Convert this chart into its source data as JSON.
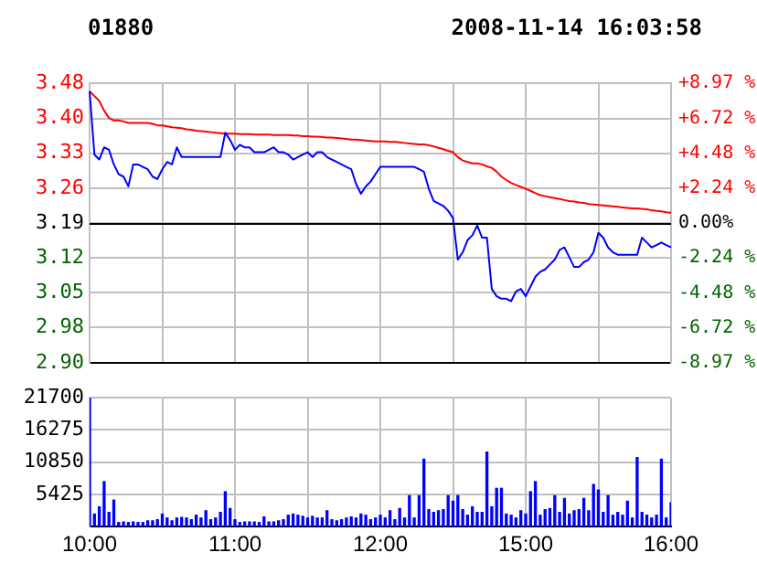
{
  "chart_data": [
    {
      "type": "line",
      "title": "01880",
      "subtitle": "2008-11-14 16:03:58",
      "categories": [
        null,
        null,
        null,
        null,
        null,
        null,
        null,
        null,
        null,
        null,
        null,
        null,
        null,
        null,
        null,
        null,
        null,
        null,
        null,
        null,
        null,
        null,
        null,
        null,
        null,
        null,
        null,
        null,
        null,
        null,
        null,
        null,
        null,
        null,
        null,
        null,
        null,
        null,
        null,
        null,
        null,
        null,
        null,
        null,
        null,
        null,
        null,
        null,
        null,
        null,
        null,
        null,
        null,
        null,
        null,
        null,
        null,
        null,
        null,
        null,
        null,
        null,
        null,
        null,
        null,
        null,
        null,
        null,
        null,
        null,
        null,
        null,
        null,
        null,
        null,
        null,
        null,
        null,
        null,
        null,
        null,
        null,
        null,
        null,
        null,
        null,
        null,
        null,
        null,
        null,
        null,
        null,
        null,
        null,
        null,
        null,
        null,
        null,
        null,
        null,
        null,
        null,
        null,
        null,
        null,
        null,
        null,
        null,
        null,
        null,
        null,
        null,
        null,
        null,
        null,
        null,
        null,
        null,
        null,
        null,
        null
      ],
      "series": [
        {
          "color": "#0000ff",
          "values": [
            3.46,
            3.33,
            3.32,
            3.345,
            3.34,
            3.31,
            3.29,
            3.285,
            3.265,
            3.31,
            3.31,
            3.305,
            3.3,
            3.285,
            3.28,
            3.3,
            3.315,
            3.31,
            3.345,
            3.325,
            3.325,
            3.325,
            3.325,
            3.325,
            3.325,
            3.325,
            3.325,
            3.325,
            3.375,
            3.36,
            3.34,
            3.35,
            3.345,
            3.345,
            3.335,
            3.335,
            3.335,
            3.34,
            3.345,
            3.335,
            3.335,
            3.33,
            3.32,
            3.325,
            3.33,
            3.335,
            3.325,
            3.335,
            3.335,
            3.325,
            3.32,
            3.315,
            3.31,
            3.305,
            3.3,
            3.27,
            3.25,
            3.265,
            3.275,
            3.29,
            3.305,
            3.305,
            3.305,
            3.305,
            3.305,
            3.305,
            3.305,
            3.305,
            3.3,
            3.295,
            3.26,
            3.235,
            3.23,
            3.225,
            3.215,
            3.2,
            3.115,
            3.13,
            3.155,
            3.165,
            3.185,
            3.16,
            3.16,
            3.055,
            3.04,
            3.035,
            3.035,
            3.03,
            3.05,
            3.055,
            3.04,
            3.06,
            3.08,
            3.09,
            3.095,
            3.105,
            3.115,
            3.135,
            3.14,
            3.12,
            3.1,
            3.1,
            3.11,
            3.115,
            3.13,
            3.17,
            3.16,
            3.14,
            3.13,
            3.125,
            3.125,
            3.125,
            3.125,
            3.125,
            3.16,
            3.15,
            3.14,
            3.145,
            3.15,
            3.145,
            3.14
          ]
        },
        {
          "color": "#ff0000",
          "values": [
            3.46,
            3.45,
            3.44,
            3.42,
            3.405,
            3.4,
            3.4,
            3.398,
            3.395,
            3.395,
            3.395,
            3.395,
            3.395,
            3.393,
            3.39,
            3.39,
            3.388,
            3.386,
            3.385,
            3.384,
            3.382,
            3.381,
            3.379,
            3.378,
            3.377,
            3.376,
            3.375,
            3.374,
            3.373,
            3.373,
            3.373,
            3.372,
            3.372,
            3.372,
            3.371,
            3.371,
            3.371,
            3.371,
            3.37,
            3.37,
            3.37,
            3.37,
            3.369,
            3.369,
            3.368,
            3.368,
            3.367,
            3.367,
            3.366,
            3.365,
            3.365,
            3.364,
            3.363,
            3.362,
            3.361,
            3.361,
            3.36,
            3.359,
            3.358,
            3.357,
            3.357,
            3.357,
            3.356,
            3.356,
            3.355,
            3.354,
            3.353,
            3.352,
            3.351,
            3.351,
            3.349,
            3.347,
            3.344,
            3.341,
            3.338,
            3.335,
            3.325,
            3.318,
            3.315,
            3.312,
            3.312,
            3.31,
            3.306,
            3.303,
            3.295,
            3.285,
            3.278,
            3.272,
            3.268,
            3.264,
            3.26,
            3.256,
            3.251,
            3.247,
            3.245,
            3.243,
            3.241,
            3.239,
            3.237,
            3.235,
            3.234,
            3.232,
            3.231,
            3.229,
            3.228,
            3.227,
            3.226,
            3.225,
            3.224,
            3.223,
            3.222,
            3.221,
            3.22,
            3.22,
            3.219,
            3.218,
            3.216,
            3.215,
            3.214,
            3.212,
            3.211
          ]
        }
      ],
      "ylim": [
        2.904,
        3.476
      ],
      "yticks": [
        {
          "value": 2.904,
          "label": "2.90"
        },
        {
          "value": 2.976,
          "label": "2.98"
        },
        {
          "value": 3.047,
          "label": "3.05"
        },
        {
          "value": 3.119,
          "label": "3.12"
        },
        {
          "value": 3.19,
          "label": "3.19"
        },
        {
          "value": 3.261,
          "label": "3.26"
        },
        {
          "value": 3.333,
          "label": "3.33"
        },
        {
          "value": 3.404,
          "label": "3.40"
        },
        {
          "value": 3.476,
          "label": "3.48"
        }
      ],
      "y2lim": [
        -8.97,
        8.97
      ],
      "y2ticks": [
        {
          "value": -8.97,
          "label": "-8.97 %"
        },
        {
          "value": -6.72,
          "label": "-6.72 %"
        },
        {
          "value": -4.48,
          "label": "-4.48 %"
        },
        {
          "value": -2.24,
          "label": "-2.24 %"
        },
        {
          "value": 0,
          "label": "0.00%"
        },
        {
          "value": 2.24,
          "label": "+2.24 %"
        },
        {
          "value": 4.48,
          "label": "+4.48 %"
        },
        {
          "value": 6.72,
          "label": "+6.72 %"
        },
        {
          "value": 8.97,
          "label": "+8.97 %"
        }
      ],
      "ref_lines": [
        {
          "axis": "y",
          "value": 3.19,
          "color": "#000000"
        }
      ],
      "grid": true,
      "legend": false,
      "marker": "none",
      "line_style": "solid"
    },
    {
      "type": "bar",
      "categories": [
        "10:00",
        null,
        null,
        null,
        null,
        null,
        null,
        null,
        null,
        null,
        null,
        null,
        null,
        null,
        null,
        null,
        null,
        null,
        null,
        null,
        null,
        null,
        null,
        null,
        null,
        null,
        null,
        null,
        null,
        null,
        "11:00",
        null,
        null,
        null,
        null,
        null,
        null,
        null,
        null,
        null,
        null,
        null,
        null,
        null,
        null,
        null,
        null,
        null,
        null,
        null,
        null,
        null,
        null,
        null,
        null,
        null,
        null,
        null,
        null,
        null,
        "12:00",
        null,
        null,
        null,
        null,
        null,
        null,
        null,
        null,
        null,
        null,
        null,
        null,
        null,
        null,
        null,
        null,
        null,
        null,
        null,
        null,
        null,
        null,
        null,
        null,
        null,
        null,
        null,
        null,
        null,
        "15:00",
        null,
        null,
        null,
        null,
        null,
        null,
        null,
        null,
        null,
        null,
        null,
        null,
        null,
        null,
        null,
        null,
        null,
        null,
        null,
        null,
        null,
        null,
        null,
        null,
        null,
        null,
        null,
        null,
        null,
        "16:00"
      ],
      "series": [
        {
          "color": "#0000ff",
          "values": [
            21700,
            2080,
            3300,
            7550,
            2360,
            4440,
            660,
            750,
            660,
            750,
            660,
            660,
            940,
            940,
            1130,
            2080,
            1420,
            940,
            1420,
            1510,
            1420,
            1130,
            1890,
            1420,
            2640,
            1130,
            1420,
            2360,
            5850,
            3020,
            1130,
            660,
            750,
            750,
            750,
            660,
            1600,
            750,
            750,
            940,
            1130,
            1890,
            2080,
            1890,
            1700,
            1420,
            1700,
            1420,
            1420,
            2640,
            1130,
            940,
            1130,
            1420,
            1600,
            1420,
            2080,
            1890,
            1130,
            1420,
            1890,
            1420,
            2640,
            1130,
            3020,
            1420,
            5190,
            1420,
            5190,
            11330,
            2830,
            2360,
            2640,
            2830,
            5190,
            4250,
            5190,
            2830,
            1890,
            3300,
            2360,
            2360,
            12550,
            3300,
            6420,
            6420,
            2080,
            1890,
            1420,
            2640,
            2080,
            5850,
            7550,
            1890,
            2830,
            3020,
            5190,
            2360,
            4720,
            2080,
            2640,
            2830,
            4720,
            2640,
            7080,
            6140,
            2360,
            5190,
            1890,
            2360,
            1890,
            4250,
            1420,
            11620,
            2360,
            1890,
            1420,
            1890,
            11330,
            1420,
            3970
          ]
        }
      ],
      "ylim": [
        0,
        21700
      ],
      "yticks": [
        5425,
        10850,
        16275,
        21700
      ],
      "grid": true,
      "legend": false
    }
  ]
}
